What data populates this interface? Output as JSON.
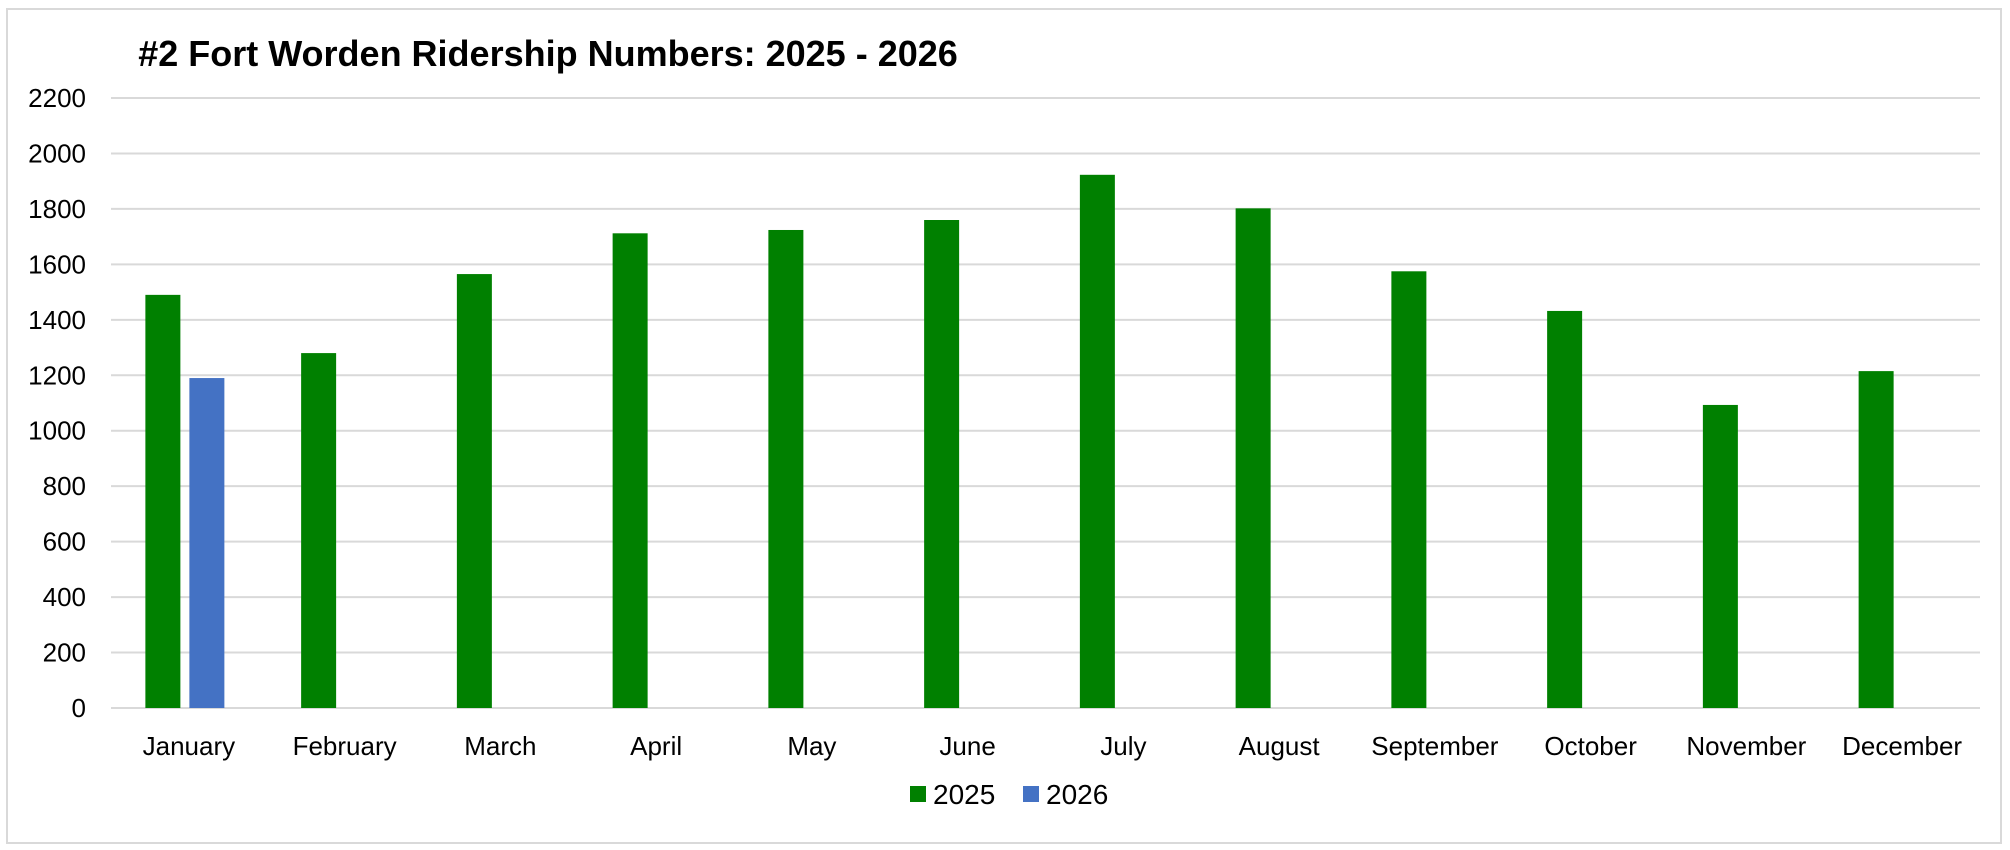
{
  "chart_data": {
    "type": "bar",
    "title": "#2 Fort Worden Ridership Numbers:  2025 - 2026",
    "xlabel": "",
    "ylabel": "",
    "ylim": [
      0,
      2200
    ],
    "yticks": [
      0,
      200,
      400,
      600,
      800,
      1000,
      1200,
      1400,
      1600,
      1800,
      2000,
      2200
    ],
    "grid": true,
    "legend_position": "bottom",
    "categories": [
      "January",
      "February",
      "March",
      "April",
      "May",
      "June",
      "July",
      "August",
      "September",
      "October",
      "November",
      "December"
    ],
    "series": [
      {
        "name": "2025",
        "color": "#008000",
        "values": [
          1490,
          1280,
          1565,
          1712,
          1724,
          1760,
          1923,
          1802,
          1575,
          1432,
          1093,
          1215
        ]
      },
      {
        "name": "2026",
        "color": "#4472c4",
        "values": [
          1190,
          null,
          null,
          null,
          null,
          null,
          null,
          null,
          null,
          null,
          null,
          null
        ]
      }
    ],
    "colors": {
      "grid": "#d9d9d9",
      "axis": "#d9d9d9",
      "border": "#d9d9d9"
    }
  }
}
